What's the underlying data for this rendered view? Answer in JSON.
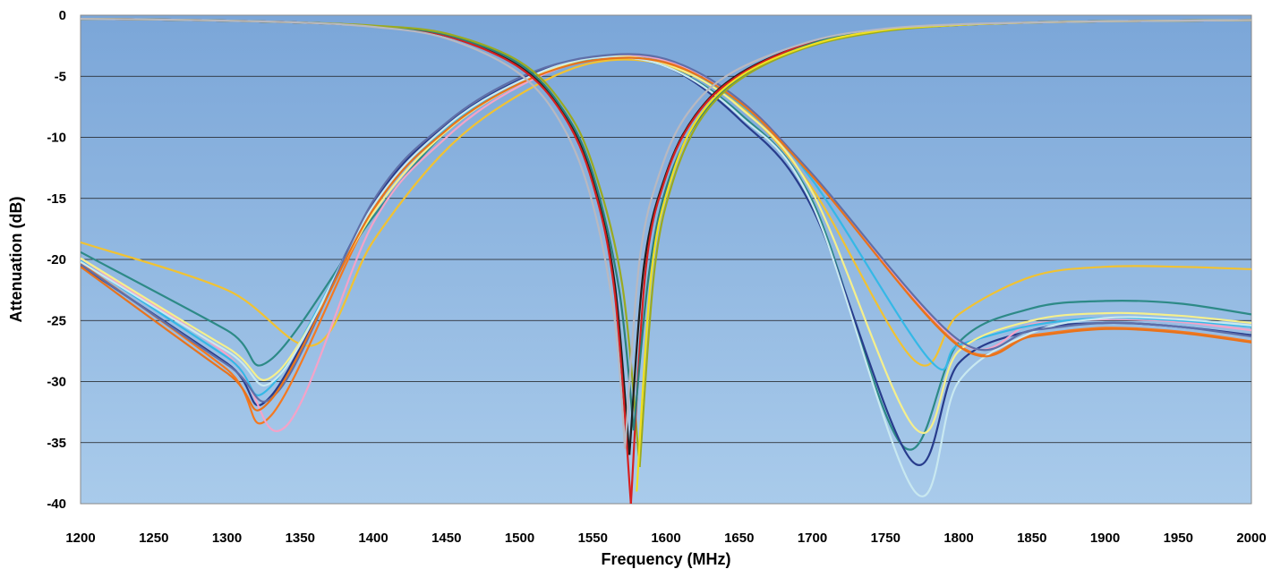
{
  "chart_data": {
    "type": "line",
    "title": "",
    "xlabel": "Frequency (MHz)",
    "ylabel": "Attenuation (dB)",
    "xlim": [
      1200,
      2000
    ],
    "ylim": [
      -40,
      0
    ],
    "xticks": [
      "1200",
      "1250",
      "1300",
      "1350",
      "1400",
      "1450",
      "1500",
      "1550",
      "1600",
      "1650",
      "1700",
      "1750",
      "1800",
      "1850",
      "1900",
      "1950",
      "2000"
    ],
    "yticks": [
      "0",
      "-5",
      "-10",
      "-15",
      "-20",
      "-25",
      "-30",
      "-35",
      "-40"
    ],
    "grid": true,
    "legend": "none",
    "background": "gradient-blue",
    "series": [
      {
        "color": "#2d8a87",
        "x": [
          1200,
          1300,
          1330,
          1400,
          1450,
          1500,
          1550,
          1600,
          1650,
          1700,
          1762,
          1800,
          1850,
          1900,
          1950,
          2000
        ],
        "y": [
          -19.4,
          -25.8,
          -28.2,
          -16.5,
          -9.5,
          -5.3,
          -3.6,
          -4.2,
          -8.0,
          -15.2,
          -35.3,
          -26.8,
          -24.0,
          -23.4,
          -23.6,
          -24.5
        ]
      },
      {
        "color": "#f1c232",
        "x": [
          1200,
          1300,
          1360,
          1400,
          1450,
          1500,
          1550,
          1600,
          1650,
          1700,
          1770,
          1800,
          1850,
          1900,
          1950,
          2000
        ],
        "y": [
          -18.6,
          -22.5,
          -27.0,
          -18.5,
          -11.0,
          -6.5,
          -3.9,
          -4.1,
          -7.4,
          -14.2,
          -28.3,
          -24.5,
          -21.4,
          -20.6,
          -20.6,
          -20.8
        ]
      },
      {
        "color": "#f47920",
        "x": [
          1200,
          1300,
          1330,
          1400,
          1450,
          1500,
          1550,
          1600,
          1650,
          1700,
          1800,
          1850,
          1900,
          1950,
          2000
        ],
        "y": [
          -20.3,
          -29.0,
          -32.8,
          -16.0,
          -9.2,
          -5.5,
          -3.6,
          -3.8,
          -7.2,
          -13.2,
          -27.0,
          -26.2,
          -25.6,
          -25.9,
          -26.7
        ]
      },
      {
        "color": "#283c8c",
        "x": [
          1200,
          1300,
          1330,
          1400,
          1450,
          1500,
          1550,
          1600,
          1650,
          1700,
          1768,
          1800,
          1850,
          1900,
          1950,
          2000
        ],
        "y": [
          -20.5,
          -28.5,
          -31.2,
          -15.4,
          -9.0,
          -5.3,
          -3.5,
          -4.2,
          -8.5,
          -15.8,
          -36.5,
          -28.5,
          -25.8,
          -25.2,
          -25.5,
          -26.2
        ]
      },
      {
        "color": "#f4a3c8",
        "x": [
          1200,
          1300,
          1340,
          1400,
          1450,
          1500,
          1550,
          1600,
          1650,
          1700,
          1800,
          1850,
          1900,
          1950,
          2000
        ],
        "y": [
          -20.0,
          -27.8,
          -33.7,
          -17.0,
          -10.0,
          -5.8,
          -3.6,
          -3.7,
          -6.9,
          -13.0,
          -26.7,
          -25.3,
          -24.9,
          -25.1,
          -25.8
        ]
      },
      {
        "color": "#35b8e6",
        "x": [
          1200,
          1300,
          1330,
          1400,
          1450,
          1500,
          1550,
          1600,
          1650,
          1700,
          1780,
          1800,
          1850,
          1900,
          1950,
          2000
        ],
        "y": [
          -20.1,
          -28.0,
          -30.4,
          -15.8,
          -9.3,
          -5.5,
          -3.6,
          -3.9,
          -7.2,
          -13.5,
          -28.2,
          -27.0,
          -25.4,
          -24.8,
          -25.0,
          -25.5
        ]
      },
      {
        "color": "#f5ef8c",
        "x": [
          1200,
          1300,
          1335,
          1400,
          1450,
          1500,
          1550,
          1600,
          1650,
          1700,
          1770,
          1800,
          1850,
          1900,
          1950,
          2000
        ],
        "y": [
          -19.9,
          -27.2,
          -29.2,
          -16.2,
          -9.5,
          -5.6,
          -3.5,
          -4.0,
          -7.5,
          -14.5,
          -33.8,
          -27.5,
          -25.0,
          -24.4,
          -24.6,
          -25.2
        ]
      },
      {
        "color": "#c8e8f0",
        "x": [
          1200,
          1300,
          1335,
          1400,
          1450,
          1500,
          1550,
          1600,
          1650,
          1700,
          1770,
          1800,
          1850,
          1900,
          1950,
          2000
        ],
        "y": [
          -20.2,
          -27.5,
          -29.6,
          -15.6,
          -9.1,
          -5.4,
          -3.5,
          -4.2,
          -8.2,
          -15.5,
          -39.0,
          -30.0,
          -26.0,
          -24.8,
          -24.9,
          -25.4
        ]
      },
      {
        "color": "#5f6fa8",
        "x": [
          1200,
          1300,
          1335,
          1400,
          1450,
          1500,
          1550,
          1600,
          1650,
          1700,
          1800,
          1850,
          1900,
          1950,
          2000
        ],
        "y": [
          -20.4,
          -28.6,
          -30.8,
          -15.2,
          -8.8,
          -5.1,
          -3.4,
          -3.6,
          -6.9,
          -13.0,
          -26.6,
          -25.8,
          -25.2,
          -25.5,
          -26.3
        ]
      },
      {
        "color": "#e8731c",
        "x": [
          1200,
          1300,
          1330,
          1400,
          1450,
          1500,
          1550,
          1600,
          1650,
          1700,
          1800,
          1850,
          1900,
          1950,
          2000
        ],
        "y": [
          -20.6,
          -29.3,
          -31.5,
          -15.9,
          -9.4,
          -5.6,
          -3.7,
          -3.9,
          -7.1,
          -13.2,
          -27.1,
          -26.3,
          -25.7,
          -26.0,
          -26.8
        ]
      },
      {
        "color": "#1e1e1e",
        "x": [
          1200,
          1250,
          1300,
          1350,
          1400,
          1450,
          1500,
          1530,
          1550,
          1565,
          1575
        ],
        "y": [
          -0.3,
          -0.35,
          -0.45,
          -0.6,
          -0.9,
          -1.7,
          -4.2,
          -8.0,
          -13.5,
          -22.0,
          -36.0
        ]
      },
      {
        "color": "#d62020",
        "x": [
          1200,
          1250,
          1300,
          1350,
          1400,
          1450,
          1500,
          1530,
          1550,
          1565,
          1576
        ],
        "y": [
          -0.3,
          -0.35,
          -0.45,
          -0.6,
          -0.9,
          -1.7,
          -4.3,
          -8.2,
          -13.8,
          -22.8,
          -40.0
        ]
      },
      {
        "color": "#2a7f7a",
        "x": [
          1200,
          1250,
          1300,
          1350,
          1400,
          1450,
          1500,
          1530,
          1550,
          1568,
          1578
        ],
        "y": [
          -0.3,
          -0.35,
          -0.45,
          -0.6,
          -0.9,
          -1.6,
          -4.0,
          -7.8,
          -13.0,
          -22.5,
          -34.0
        ]
      },
      {
        "color": "#9aaa20",
        "x": [
          1200,
          1250,
          1300,
          1350,
          1400,
          1450,
          1500,
          1530,
          1550,
          1570,
          1582
        ],
        "y": [
          -0.3,
          -0.35,
          -0.45,
          -0.6,
          -0.85,
          -1.5,
          -3.8,
          -7.4,
          -12.3,
          -22.0,
          -37.0
        ]
      },
      {
        "color": "#b8b8c0",
        "x": [
          1200,
          1250,
          1300,
          1350,
          1400,
          1450,
          1500,
          1530,
          1550,
          1565,
          1572
        ],
        "y": [
          -0.3,
          -0.35,
          -0.45,
          -0.6,
          -0.95,
          -1.9,
          -4.8,
          -9.2,
          -15.5,
          -25.0,
          -35.5
        ]
      },
      {
        "color": "#1e1e1e",
        "x": [
          1575,
          1585,
          1600,
          1620,
          1650,
          1700,
          1750,
          1800,
          1850,
          1900,
          1950,
          2000
        ],
        "y": [
          -36.0,
          -20.5,
          -13.0,
          -8.2,
          -4.8,
          -2.2,
          -1.2,
          -0.8,
          -0.6,
          -0.5,
          -0.45,
          -0.4
        ]
      },
      {
        "color": "#d62020",
        "x": [
          1576,
          1586,
          1600,
          1620,
          1650,
          1700,
          1750,
          1800,
          1850,
          1900,
          1950,
          2000
        ],
        "y": [
          -40.0,
          -21.0,
          -13.2,
          -8.3,
          -4.9,
          -2.2,
          -1.2,
          -0.8,
          -0.6,
          -0.5,
          -0.45,
          -0.4
        ]
      },
      {
        "color": "#2a7f7a",
        "x": [
          1578,
          1588,
          1600,
          1620,
          1650,
          1700,
          1750,
          1800,
          1850,
          1900,
          1950,
          2000
        ],
        "y": [
          -34.0,
          -21.5,
          -14.2,
          -8.9,
          -5.2,
          -2.3,
          -1.2,
          -0.8,
          -0.6,
          -0.5,
          -0.45,
          -0.4
        ]
      },
      {
        "color": "#9aaa20",
        "x": [
          1582,
          1592,
          1605,
          1625,
          1655,
          1700,
          1750,
          1800,
          1850,
          1900,
          1950,
          2000
        ],
        "y": [
          -37.0,
          -21.0,
          -13.5,
          -8.3,
          -4.9,
          -2.5,
          -1.3,
          -0.8,
          -0.6,
          -0.5,
          -0.45,
          -0.4
        ]
      },
      {
        "color": "#f0e020",
        "x": [
          1580,
          1590,
          1603,
          1622,
          1652,
          1700,
          1750,
          1800,
          1850,
          1900,
          1950,
          2000
        ],
        "y": [
          -39.0,
          -21.2,
          -13.6,
          -8.4,
          -4.9,
          -2.4,
          -1.2,
          -0.8,
          -0.6,
          -0.5,
          -0.45,
          -0.4
        ]
      },
      {
        "color": "#b8b8c0",
        "x": [
          1572,
          1582,
          1596,
          1615,
          1645,
          1700,
          1750,
          1800,
          1850,
          1900,
          1950,
          2000
        ],
        "y": [
          -35.5,
          -20.0,
          -12.8,
          -8.0,
          -4.7,
          -2.1,
          -1.1,
          -0.75,
          -0.6,
          -0.5,
          -0.45,
          -0.4
        ]
      }
    ]
  }
}
